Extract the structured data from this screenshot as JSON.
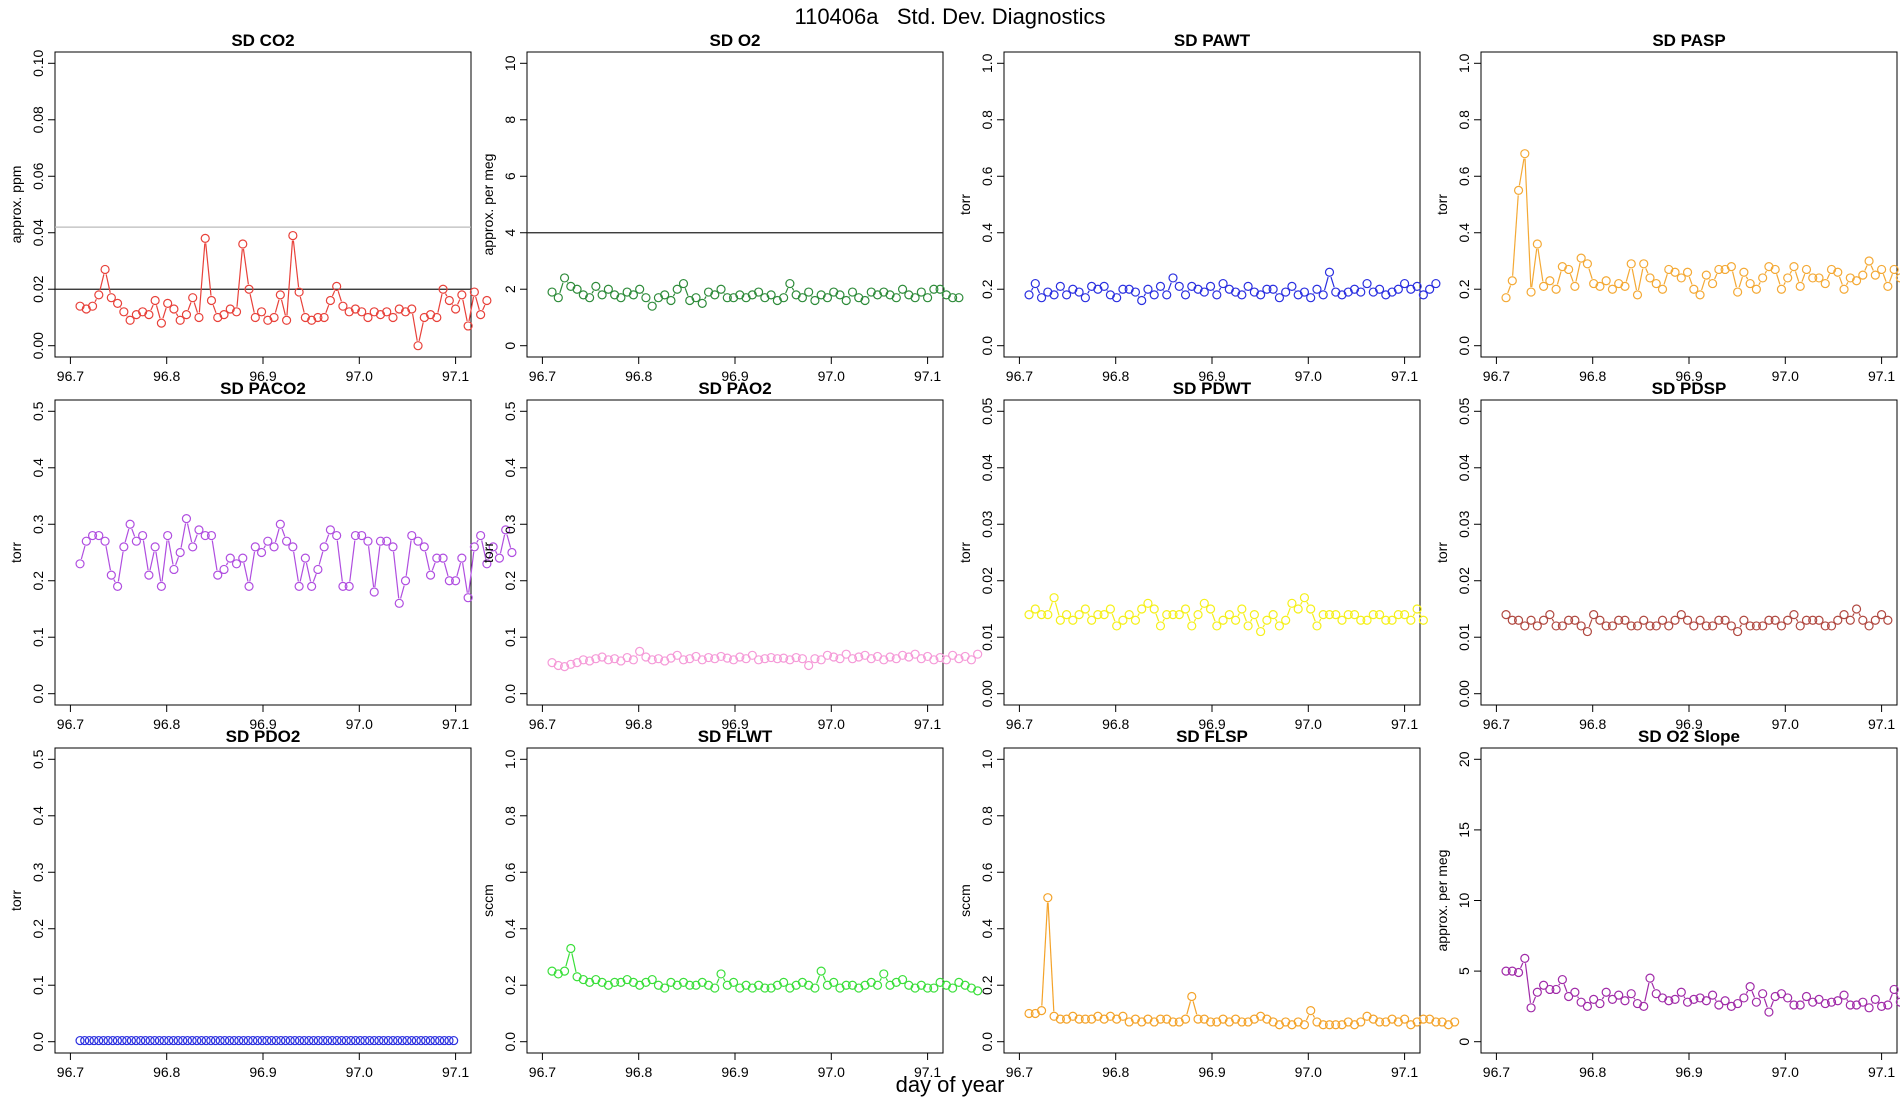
{
  "figure": {
    "title": "110406a   Std. Dev. Diagnostics",
    "xlabel": "day of year"
  },
  "chart_data": [
    {
      "type": "line",
      "title": "SD CO2",
      "xlabel": "",
      "ylabel": "approx. ppm",
      "color": "#e8413a",
      "xlim": [
        96.7,
        97.1
      ],
      "ylim": [
        0,
        0.1
      ],
      "xticks": [
        "96.7",
        "96.8",
        "96.9",
        "97.0",
        "97.1"
      ],
      "yticks": [
        "0.00",
        "0.02",
        "0.04",
        "0.06",
        "0.08",
        "0.10"
      ],
      "hlines": [
        {
          "y": 0.02,
          "color": "#222222"
        },
        {
          "y": 0.042,
          "color": "#bbbbbb"
        }
      ],
      "x_start": 96.71,
      "x_step": 0.0065,
      "values": [
        0.014,
        0.013,
        0.014,
        0.018,
        0.027,
        0.017,
        0.015,
        0.012,
        0.009,
        0.011,
        0.012,
        0.011,
        0.016,
        0.008,
        0.015,
        0.013,
        0.009,
        0.011,
        0.017,
        0.01,
        0.038,
        0.016,
        0.01,
        0.011,
        0.013,
        0.012,
        0.036,
        0.02,
        0.01,
        0.012,
        0.009,
        0.01,
        0.018,
        0.009,
        0.039,
        0.019,
        0.01,
        0.009,
        0.01,
        0.01,
        0.016,
        0.021,
        0.014,
        0.012,
        0.013,
        0.012,
        0.01,
        0.012,
        0.011,
        0.012,
        0.01,
        0.013,
        0.012,
        0.013,
        0.0,
        0.01,
        0.011,
        0.01,
        0.02,
        0.016,
        0.013,
        0.018,
        0.007,
        0.019,
        0.011,
        0.016
      ]
    },
    {
      "type": "line",
      "title": "SD O2",
      "ylabel": "approx. per meg",
      "color": "#2e8b3a",
      "xlim": [
        96.7,
        97.1
      ],
      "ylim": [
        0,
        10
      ],
      "xticks": [
        "96.7",
        "96.8",
        "96.9",
        "97.0",
        "97.1"
      ],
      "yticks": [
        "0",
        "2",
        "4",
        "6",
        "8",
        "10"
      ],
      "hlines": [
        {
          "y": 4,
          "color": "#222222"
        }
      ],
      "x_start": 96.71,
      "x_step": 0.0065,
      "values": [
        1.9,
        1.7,
        2.4,
        2.1,
        2.0,
        1.8,
        1.7,
        2.1,
        1.8,
        2.0,
        1.8,
        1.7,
        1.9,
        1.8,
        2.0,
        1.7,
        1.4,
        1.7,
        1.8,
        1.6,
        2.0,
        2.2,
        1.6,
        1.7,
        1.5,
        1.9,
        1.8,
        2.0,
        1.7,
        1.7,
        1.8,
        1.7,
        1.8,
        1.9,
        1.7,
        1.8,
        1.6,
        1.7,
        2.2,
        1.8,
        1.7,
        1.9,
        1.6,
        1.8,
        1.7,
        1.9,
        1.8,
        1.6,
        1.9,
        1.7,
        1.6,
        1.9,
        1.8,
        1.9,
        1.8,
        1.7,
        2.0,
        1.8,
        1.7,
        1.9,
        1.7,
        2.0,
        2.0,
        1.8,
        1.7,
        1.7
      ]
    },
    {
      "type": "line",
      "title": "SD PAWT",
      "ylabel": "torr",
      "color": "#2a2fe0",
      "xlim": [
        96.7,
        97.1
      ],
      "ylim": [
        0,
        1.0
      ],
      "xticks": [
        "96.7",
        "96.8",
        "96.9",
        "97.0",
        "97.1"
      ],
      "yticks": [
        "0.0",
        "0.2",
        "0.4",
        "0.6",
        "0.8",
        "1.0"
      ],
      "hlines": [],
      "x_start": 96.71,
      "x_step": 0.0065,
      "values": [
        0.18,
        0.22,
        0.17,
        0.19,
        0.18,
        0.21,
        0.18,
        0.2,
        0.19,
        0.17,
        0.21,
        0.2,
        0.21,
        0.18,
        0.17,
        0.2,
        0.2,
        0.19,
        0.16,
        0.2,
        0.18,
        0.21,
        0.18,
        0.24,
        0.21,
        0.18,
        0.21,
        0.2,
        0.19,
        0.21,
        0.18,
        0.22,
        0.2,
        0.19,
        0.18,
        0.21,
        0.19,
        0.18,
        0.2,
        0.2,
        0.17,
        0.19,
        0.21,
        0.18,
        0.19,
        0.17,
        0.2,
        0.18,
        0.26,
        0.19,
        0.18,
        0.19,
        0.2,
        0.19,
        0.22,
        0.19,
        0.2,
        0.18,
        0.19,
        0.2,
        0.22,
        0.2,
        0.21,
        0.18,
        0.2,
        0.22
      ]
    },
    {
      "type": "line",
      "title": "SD PASP",
      "ylabel": "torr",
      "color": "#f4a935",
      "xlim": [
        96.7,
        97.1
      ],
      "ylim": [
        0,
        1.0
      ],
      "xticks": [
        "96.7",
        "96.8",
        "96.9",
        "97.0",
        "97.1"
      ],
      "yticks": [
        "0.0",
        "0.2",
        "0.4",
        "0.6",
        "0.8",
        "1.0"
      ],
      "hlines": [],
      "x_start": 96.71,
      "x_step": 0.0065,
      "values": [
        0.17,
        0.23,
        0.55,
        0.68,
        0.19,
        0.36,
        0.21,
        0.23,
        0.2,
        0.28,
        0.27,
        0.21,
        0.31,
        0.29,
        0.22,
        0.21,
        0.23,
        0.2,
        0.22,
        0.21,
        0.29,
        0.18,
        0.29,
        0.24,
        0.22,
        0.2,
        0.27,
        0.26,
        0.24,
        0.26,
        0.2,
        0.18,
        0.25,
        0.22,
        0.27,
        0.27,
        0.28,
        0.19,
        0.26,
        0.22,
        0.2,
        0.24,
        0.28,
        0.27,
        0.2,
        0.24,
        0.28,
        0.21,
        0.27,
        0.24,
        0.24,
        0.22,
        0.27,
        0.26,
        0.2,
        0.24,
        0.23,
        0.25,
        0.3,
        0.25,
        0.27,
        0.21,
        0.27,
        0.24,
        0.31,
        0.28
      ]
    },
    {
      "type": "line",
      "title": "SD PACO2",
      "ylabel": "torr",
      "color": "#b04ee0",
      "xlim": [
        96.7,
        97.1
      ],
      "ylim": [
        0,
        0.5
      ],
      "xticks": [
        "96.7",
        "96.8",
        "96.9",
        "97.0",
        "97.1"
      ],
      "yticks": [
        "0.0",
        "0.1",
        "0.2",
        "0.3",
        "0.4",
        "0.5"
      ],
      "hlines": [],
      "x_start": 96.71,
      "x_step": 0.0065,
      "values": [
        0.23,
        0.27,
        0.28,
        0.28,
        0.27,
        0.21,
        0.19,
        0.26,
        0.3,
        0.27,
        0.28,
        0.21,
        0.26,
        0.19,
        0.28,
        0.22,
        0.25,
        0.31,
        0.26,
        0.29,
        0.28,
        0.28,
        0.21,
        0.22,
        0.24,
        0.23,
        0.24,
        0.19,
        0.26,
        0.25,
        0.27,
        0.26,
        0.3,
        0.27,
        0.26,
        0.19,
        0.24,
        0.19,
        0.22,
        0.26,
        0.29,
        0.28,
        0.19,
        0.19,
        0.28,
        0.28,
        0.27,
        0.18,
        0.27,
        0.27,
        0.26,
        0.16,
        0.2,
        0.28,
        0.27,
        0.26,
        0.21,
        0.24,
        0.24,
        0.2,
        0.2,
        0.24,
        0.17,
        0.26,
        0.28,
        0.23,
        0.26,
        0.24,
        0.29,
        0.25
      ]
    },
    {
      "type": "line",
      "title": "SD PAO2",
      "ylabel": "torr",
      "color": "#f59ad8",
      "xlim": [
        96.7,
        97.1
      ],
      "ylim": [
        0,
        0.5
      ],
      "xticks": [
        "96.7",
        "96.8",
        "96.9",
        "97.0",
        "97.1"
      ],
      "yticks": [
        "0.0",
        "0.1",
        "0.2",
        "0.3",
        "0.4",
        "0.5"
      ],
      "hlines": [],
      "x_start": 96.71,
      "x_step": 0.0065,
      "values": [
        0.055,
        0.05,
        0.048,
        0.052,
        0.055,
        0.06,
        0.058,
        0.062,
        0.065,
        0.06,
        0.062,
        0.058,
        0.064,
        0.06,
        0.075,
        0.065,
        0.06,
        0.062,
        0.058,
        0.063,
        0.068,
        0.06,
        0.062,
        0.066,
        0.06,
        0.064,
        0.062,
        0.066,
        0.063,
        0.06,
        0.065,
        0.062,
        0.068,
        0.06,
        0.062,
        0.064,
        0.062,
        0.063,
        0.06,
        0.064,
        0.062,
        0.05,
        0.062,
        0.06,
        0.068,
        0.065,
        0.062,
        0.07,
        0.062,
        0.065,
        0.068,
        0.062,
        0.066,
        0.06,
        0.065,
        0.062,
        0.068,
        0.065,
        0.07,
        0.062,
        0.066,
        0.06,
        0.064,
        0.06,
        0.068,
        0.062,
        0.066,
        0.06,
        0.07
      ]
    },
    {
      "type": "line",
      "title": "SD PDWT",
      "ylabel": "torr",
      "color": "#f5f019",
      "xlim": [
        96.7,
        97.1
      ],
      "ylim": [
        0,
        0.05
      ],
      "xticks": [
        "96.7",
        "96.8",
        "96.9",
        "97.0",
        "97.1"
      ],
      "yticks": [
        "0.00",
        "0.01",
        "0.02",
        "0.03",
        "0.04",
        "0.05"
      ],
      "hlines": [],
      "x_start": 96.71,
      "x_step": 0.0065,
      "values": [
        0.014,
        0.015,
        0.014,
        0.014,
        0.017,
        0.013,
        0.014,
        0.013,
        0.014,
        0.015,
        0.013,
        0.014,
        0.014,
        0.015,
        0.012,
        0.013,
        0.014,
        0.013,
        0.015,
        0.016,
        0.015,
        0.012,
        0.014,
        0.014,
        0.014,
        0.015,
        0.012,
        0.014,
        0.016,
        0.015,
        0.012,
        0.013,
        0.014,
        0.013,
        0.015,
        0.012,
        0.014,
        0.011,
        0.013,
        0.014,
        0.012,
        0.013,
        0.016,
        0.015,
        0.017,
        0.015,
        0.012,
        0.014,
        0.014,
        0.014,
        0.013,
        0.014,
        0.014,
        0.013,
        0.013,
        0.014,
        0.014,
        0.013,
        0.013,
        0.014,
        0.014,
        0.013,
        0.015,
        0.013
      ]
    },
    {
      "type": "line",
      "title": "SD PDSP",
      "ylabel": "torr",
      "color": "#b04840",
      "xlim": [
        96.7,
        97.1
      ],
      "ylim": [
        0,
        0.05
      ],
      "xticks": [
        "96.7",
        "96.8",
        "96.9",
        "97.0",
        "97.1"
      ],
      "yticks": [
        "0.00",
        "0.01",
        "0.02",
        "0.03",
        "0.04",
        "0.05"
      ],
      "hlines": [],
      "x_start": 96.71,
      "x_step": 0.0065,
      "values": [
        0.014,
        0.013,
        0.013,
        0.012,
        0.013,
        0.012,
        0.013,
        0.014,
        0.012,
        0.012,
        0.013,
        0.013,
        0.012,
        0.011,
        0.014,
        0.013,
        0.012,
        0.012,
        0.013,
        0.013,
        0.012,
        0.012,
        0.013,
        0.012,
        0.012,
        0.013,
        0.012,
        0.013,
        0.014,
        0.013,
        0.012,
        0.013,
        0.012,
        0.012,
        0.013,
        0.013,
        0.012,
        0.011,
        0.013,
        0.012,
        0.012,
        0.012,
        0.013,
        0.013,
        0.012,
        0.013,
        0.014,
        0.012,
        0.013,
        0.013,
        0.013,
        0.012,
        0.012,
        0.013,
        0.014,
        0.013,
        0.015,
        0.013,
        0.012,
        0.013,
        0.014,
        0.013
      ]
    },
    {
      "type": "line",
      "title": "SD PDO2",
      "ylabel": "torr",
      "color": "#2a2fe0",
      "xlim": [
        96.7,
        97.1
      ],
      "ylim": [
        0,
        0.5
      ],
      "xticks": [
        "96.7",
        "96.8",
        "96.9",
        "97.0",
        "97.1"
      ],
      "yticks": [
        "0.0",
        "0.1",
        "0.2",
        "0.3",
        "0.4",
        "0.5"
      ],
      "hlines": [],
      "x_start": 96.71,
      "x_step": 0.00485,
      "values": [
        0.002,
        0.002,
        0.002,
        0.002,
        0.002,
        0.002,
        0.002,
        0.002,
        0.002,
        0.002,
        0.002,
        0.002,
        0.002,
        0.002,
        0.002,
        0.002,
        0.002,
        0.002,
        0.002,
        0.002,
        0.002,
        0.002,
        0.002,
        0.002,
        0.002,
        0.002,
        0.002,
        0.002,
        0.002,
        0.002,
        0.002,
        0.002,
        0.002,
        0.002,
        0.002,
        0.002,
        0.002,
        0.002,
        0.002,
        0.002,
        0.002,
        0.002,
        0.002,
        0.002,
        0.002,
        0.002,
        0.002,
        0.002,
        0.002,
        0.002,
        0.002,
        0.002,
        0.002,
        0.002,
        0.002,
        0.002,
        0.002,
        0.002,
        0.002,
        0.002,
        0.002,
        0.002,
        0.002,
        0.002,
        0.002,
        0.002,
        0.002,
        0.002,
        0.002,
        0.002,
        0.002,
        0.002,
        0.002,
        0.002,
        0.002,
        0.002,
        0.002,
        0.002,
        0.002,
        0.002,
        0.002
      ]
    },
    {
      "type": "line",
      "title": "SD FLWT",
      "ylabel": "sccm",
      "color": "#3adf3a",
      "xlim": [
        96.7,
        97.1
      ],
      "ylim": [
        0,
        1.0
      ],
      "xticks": [
        "96.7",
        "96.8",
        "96.9",
        "97.0",
        "97.1"
      ],
      "yticks": [
        "0.0",
        "0.2",
        "0.4",
        "0.6",
        "0.8",
        "1.0"
      ],
      "hlines": [],
      "x_start": 96.71,
      "x_step": 0.0065,
      "values": [
        0.25,
        0.24,
        0.25,
        0.33,
        0.23,
        0.22,
        0.21,
        0.22,
        0.21,
        0.2,
        0.21,
        0.21,
        0.22,
        0.21,
        0.2,
        0.21,
        0.22,
        0.2,
        0.19,
        0.21,
        0.2,
        0.21,
        0.2,
        0.2,
        0.21,
        0.2,
        0.19,
        0.24,
        0.2,
        0.21,
        0.19,
        0.2,
        0.19,
        0.2,
        0.19,
        0.19,
        0.2,
        0.21,
        0.19,
        0.2,
        0.21,
        0.2,
        0.19,
        0.25,
        0.2,
        0.21,
        0.19,
        0.2,
        0.2,
        0.19,
        0.2,
        0.21,
        0.2,
        0.24,
        0.2,
        0.21,
        0.22,
        0.2,
        0.19,
        0.2,
        0.19,
        0.19,
        0.21,
        0.2,
        0.19,
        0.21,
        0.2,
        0.19,
        0.18
      ]
    },
    {
      "type": "line",
      "title": "SD FLSP",
      "ylabel": "sccm",
      "color": "#f4a32a",
      "xlim": [
        96.7,
        97.1
      ],
      "ylim": [
        0,
        1.0
      ],
      "xticks": [
        "96.7",
        "96.8",
        "96.9",
        "97.0",
        "97.1"
      ],
      "yticks": [
        "0.0",
        "0.2",
        "0.4",
        "0.6",
        "0.8",
        "1.0"
      ],
      "hlines": [],
      "x_start": 96.71,
      "x_step": 0.0065,
      "values": [
        0.1,
        0.1,
        0.11,
        0.51,
        0.09,
        0.08,
        0.08,
        0.09,
        0.08,
        0.08,
        0.08,
        0.09,
        0.08,
        0.09,
        0.08,
        0.09,
        0.07,
        0.08,
        0.07,
        0.08,
        0.07,
        0.08,
        0.08,
        0.07,
        0.07,
        0.08,
        0.16,
        0.08,
        0.08,
        0.07,
        0.07,
        0.08,
        0.07,
        0.08,
        0.07,
        0.07,
        0.08,
        0.09,
        0.08,
        0.07,
        0.06,
        0.07,
        0.06,
        0.07,
        0.06,
        0.11,
        0.07,
        0.06,
        0.06,
        0.06,
        0.06,
        0.07,
        0.06,
        0.07,
        0.09,
        0.08,
        0.07,
        0.07,
        0.08,
        0.07,
        0.08,
        0.06,
        0.07,
        0.08,
        0.08,
        0.07,
        0.07,
        0.06,
        0.07
      ]
    },
    {
      "type": "line",
      "title": "SD O2 Slope",
      "ylabel": "approx. per meg",
      "color": "#a02aa8",
      "xlim": [
        96.7,
        97.1
      ],
      "ylim": [
        0,
        20
      ],
      "xticks": [
        "96.7",
        "96.8",
        "96.9",
        "97.0",
        "97.1"
      ],
      "yticks": [
        "0",
        "5",
        "10",
        "15",
        "20"
      ],
      "hlines": [],
      "x_start": 96.71,
      "x_step": 0.0065,
      "values": [
        5.0,
        5.0,
        4.9,
        5.9,
        2.4,
        3.5,
        4.0,
        3.7,
        3.7,
        4.4,
        3.2,
        3.5,
        2.8,
        2.5,
        3.0,
        2.7,
        3.5,
        3.0,
        3.3,
        2.9,
        3.4,
        2.7,
        2.5,
        4.5,
        3.4,
        3.1,
        2.9,
        3.0,
        3.5,
        2.8,
        3.0,
        3.1,
        2.9,
        3.3,
        2.6,
        2.9,
        2.5,
        2.7,
        3.1,
        3.9,
        2.8,
        3.4,
        2.1,
        3.2,
        3.4,
        3.1,
        2.6,
        2.6,
        3.2,
        2.8,
        3.0,
        2.7,
        2.8,
        2.9,
        3.3,
        2.6,
        2.6,
        2.8,
        2.4,
        3.0,
        2.5,
        2.6,
        3.7,
        2.8,
        2.8,
        3.1,
        2.2,
        3.3,
        3.0,
        2.6
      ]
    }
  ]
}
